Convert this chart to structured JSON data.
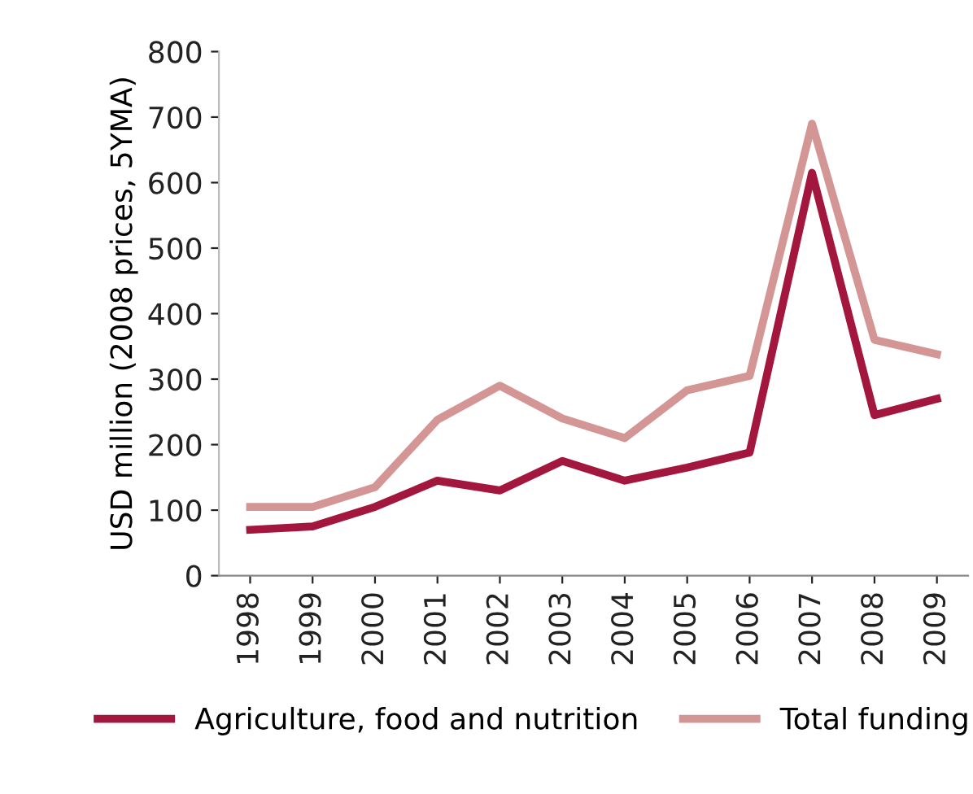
{
  "chart_data": {
    "type": "line",
    "ylabel": "USD million (2008 prices, 5YMA)",
    "categories": [
      "1998",
      "1999",
      "2000",
      "2001",
      "2002",
      "2003",
      "2004",
      "2005",
      "2006",
      "2007",
      "2008",
      "2009"
    ],
    "series": [
      {
        "name": "Agriculture, food and nutrition",
        "color": "#a3173e",
        "values": [
          70,
          75,
          105,
          145,
          130,
          175,
          145,
          165,
          188,
          615,
          245,
          270
        ]
      },
      {
        "name": "Total funding",
        "color": "#d49595",
        "values": [
          105,
          105,
          135,
          238,
          290,
          240,
          210,
          283,
          305,
          690,
          360,
          338
        ]
      }
    ],
    "ylim": [
      0,
      800
    ],
    "yticks": [
      0,
      100,
      200,
      300,
      400,
      500,
      600,
      700,
      800
    ],
    "grid": false,
    "legend": "bottom",
    "marker": "none",
    "line_style": "solid"
  }
}
